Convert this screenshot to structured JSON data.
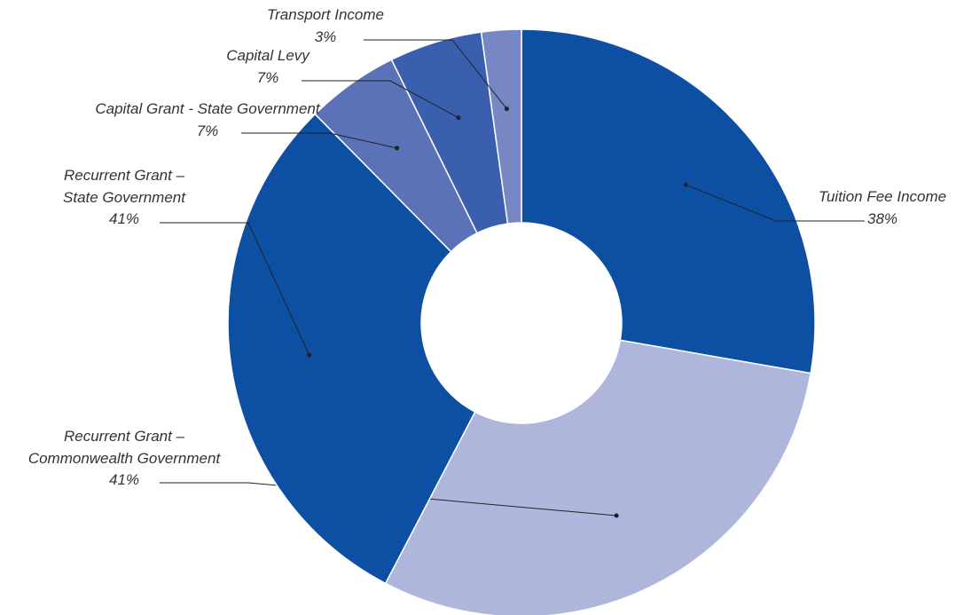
{
  "chart_data": {
    "type": "donut",
    "categories": [
      "Tuition Fee Income",
      "Recurrent Grant – Commonwealth Government",
      "Recurrent Grant – State Government",
      "Capital Grant - State Government",
      "Capital Levy",
      "Transport Income"
    ],
    "values": [
      38,
      41,
      41,
      7,
      7,
      3
    ],
    "value_labels": [
      "38%",
      "41%",
      "41%",
      "7%",
      "7%",
      "3%"
    ],
    "colors": [
      "#0d4fa3",
      "#aeb6dc",
      "#0d4fa3",
      "#5b72b8",
      "#3a5fae",
      "#7787c4"
    ]
  }
}
